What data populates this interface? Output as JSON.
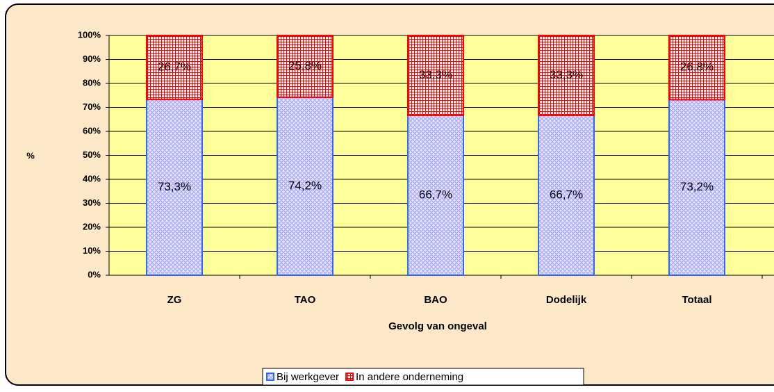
{
  "chart_data": {
    "type": "stacked_bar",
    "categories": [
      "ZG",
      "TAO",
      "BAO",
      "Dodelijk",
      "Totaal"
    ],
    "series": [
      {
        "name": "Bij werkgever",
        "color": "#3366ff",
        "values": [
          73.3,
          74.2,
          66.7,
          66.7,
          73.2
        ],
        "value_labels": [
          "73,3%",
          "74,2%",
          "66,7%",
          "66,7%",
          "73,2%"
        ]
      },
      {
        "name": "In andere onderneming",
        "color": "#ff0000",
        "values": [
          26.7,
          25.8,
          33.3,
          33.3,
          26.8
        ],
        "value_labels": [
          "26,7%",
          "25,8%",
          "33,3%",
          "33,3%",
          "26,8%"
        ]
      }
    ],
    "ylabel": "%",
    "xlabel": "Gevolg van ongeval",
    "ylim": [
      0,
      100
    ],
    "yticks": [
      {
        "value": 0,
        "label": "0%"
      },
      {
        "value": 10,
        "label": "10%"
      },
      {
        "value": 20,
        "label": "20%"
      },
      {
        "value": 30,
        "label": "30%"
      },
      {
        "value": 40,
        "label": "40%"
      },
      {
        "value": 50,
        "label": "50%"
      },
      {
        "value": 60,
        "label": "60%"
      },
      {
        "value": 70,
        "label": "70%"
      },
      {
        "value": 80,
        "label": "80%"
      },
      {
        "value": 90,
        "label": "90%"
      },
      {
        "value": 100,
        "label": "100%"
      }
    ],
    "grid": true,
    "legend": "bottom"
  }
}
